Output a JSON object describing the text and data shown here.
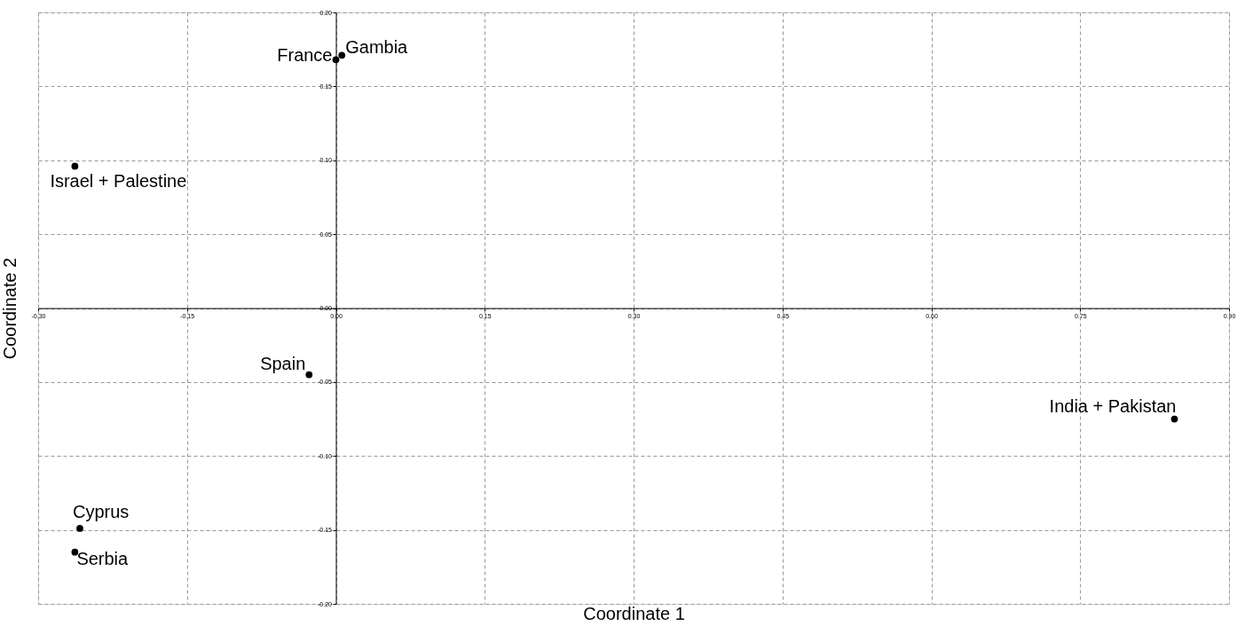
{
  "chart_data": {
    "type": "scatter",
    "xlabel": "Coordinate 1",
    "ylabel": "Coordinate 2",
    "x": [
      0.006,
      0.0,
      -0.263,
      -0.027,
      0.845,
      -0.258,
      -0.263
    ],
    "values": [
      0.171,
      0.168,
      0.096,
      -0.045,
      -0.075,
      -0.149,
      -0.165
    ],
    "color": "#000000",
    "marker": "circle",
    "grid": true,
    "xlim": [
      -0.3,
      0.9
    ],
    "ylim": [
      -0.2,
      0.2
    ],
    "xticks": [
      {
        "value": -0.3,
        "label": "-0.30"
      },
      {
        "value": -0.15,
        "label": "-0.15"
      },
      {
        "value": 0,
        "label": "0.00"
      },
      {
        "value": 0.15,
        "label": "0.15"
      },
      {
        "value": 0.3,
        "label": "0.30"
      },
      {
        "value": 0.45,
        "label": "0.45"
      },
      {
        "value": 0.6,
        "label": "0.60"
      },
      {
        "value": 0.75,
        "label": "0.75"
      },
      {
        "value": 0.9,
        "label": "0.90"
      }
    ],
    "yticks": [
      {
        "value": -0.2,
        "label": "-0.20"
      },
      {
        "value": -0.15,
        "label": "-0.15"
      },
      {
        "value": -0.1,
        "label": "-0.10"
      },
      {
        "value": -0.05,
        "label": "-0.05"
      },
      {
        "value": 0,
        "label": "0.00"
      },
      {
        "value": 0.05,
        "label": "0.05"
      },
      {
        "value": 0.1,
        "label": "0.10"
      },
      {
        "value": 0.15,
        "label": "0.15"
      },
      {
        "value": 0.2,
        "label": "0.20"
      }
    ],
    "annotations": [
      {
        "text": "Gambia",
        "x": 0.006,
        "y": 0.171
      },
      {
        "text": "France",
        "x": 0.0,
        "y": 0.168
      },
      {
        "text": "Israel + Palestine",
        "x": -0.263,
        "y": 0.096
      },
      {
        "text": "Spain",
        "x": -0.027,
        "y": -0.045
      },
      {
        "text": "India + Pakistan",
        "x": 0.845,
        "y": -0.075
      },
      {
        "text": "Cyprus",
        "x": -0.258,
        "y": -0.149
      },
      {
        "text": "Serbia",
        "x": -0.263,
        "y": -0.165
      }
    ]
  }
}
